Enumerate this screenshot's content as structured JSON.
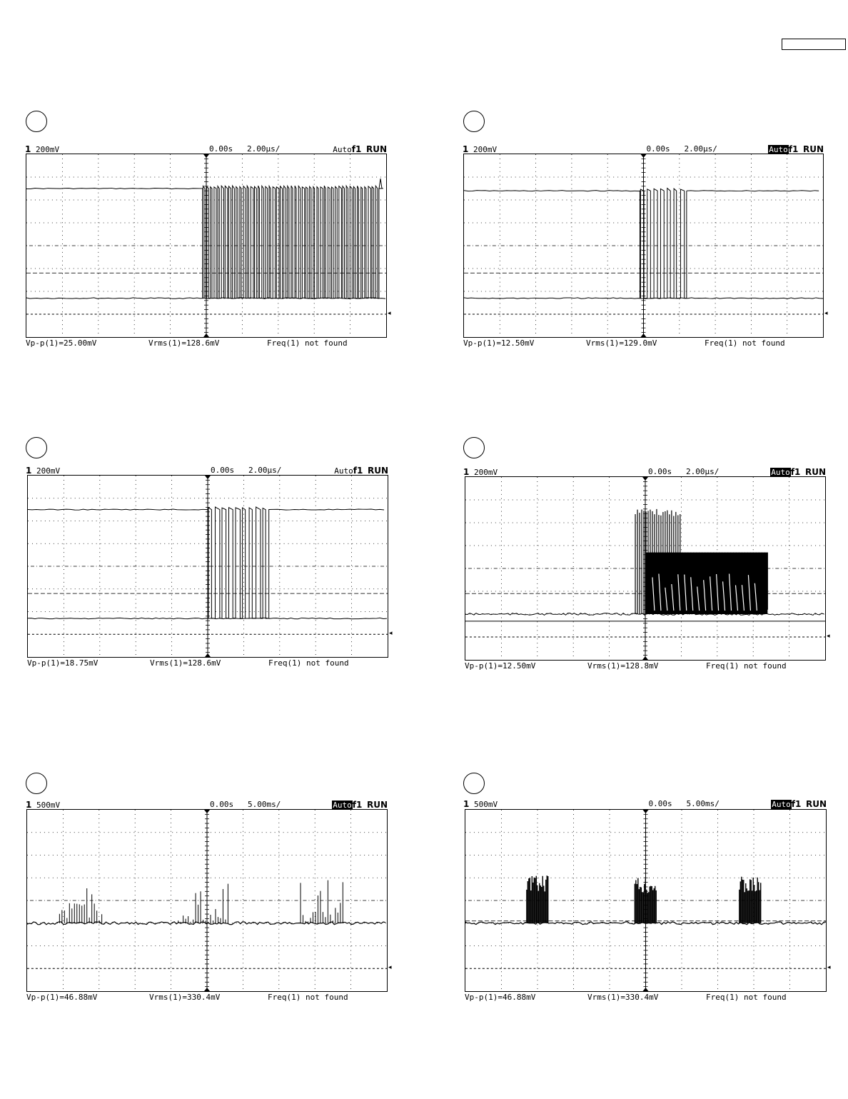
{
  "page": {
    "corner_box_label": ""
  },
  "chart_data": [
    {
      "type": "line",
      "id": "scope-1",
      "circle_label": "",
      "header": {
        "channel": "1",
        "volts_div": "200mV",
        "time_offset": "0.00s",
        "time_div": "2.00µs/",
        "trigger_mode": "Auto",
        "trigger_mode_inverted": false,
        "trigger_src": "f1",
        "run_state": "RUN"
      },
      "footer": {
        "vpp": "Vp-p(1)=25.00mV",
        "vrms": "Vrms(1)=128.6mV",
        "freq": "Freq(1) not found"
      },
      "time_range_div": [
        0,
        10
      ],
      "volt_range_div": [
        0,
        8
      ],
      "signal": {
        "high_level_div": 1.5,
        "low_level_div": 6.3,
        "burst_start_div": 4.9,
        "burst_end_div": 9.8,
        "pulses": 48,
        "spike_end": true
      }
    },
    {
      "type": "line",
      "id": "scope-2",
      "circle_label": "",
      "header": {
        "channel": "1",
        "volts_div": "200mV",
        "time_offset": "0.00s",
        "time_div": "2.00µs/",
        "trigger_mode": "Auto",
        "trigger_mode_inverted": true,
        "trigger_src": "f1",
        "run_state": "RUN"
      },
      "footer": {
        "vpp": "Vp-p(1)=12.50mV",
        "vrms": "Vrms(1)=129.0mV",
        "freq": "Freq(1) not found"
      },
      "time_range_div": [
        0,
        10
      ],
      "volt_range_div": [
        0,
        8
      ],
      "signal": {
        "high_level_div": 1.6,
        "low_level_div": 6.3,
        "burst_start_div": 4.9,
        "burst_end_div": 6.2,
        "pulses": 7,
        "spike_end": false
      }
    },
    {
      "type": "line",
      "id": "scope-3",
      "circle_label": "",
      "header": {
        "channel": "1",
        "volts_div": "200mV",
        "time_offset": "0.00s",
        "time_div": "2.00µs/",
        "trigger_mode": "Auto",
        "trigger_mode_inverted": false,
        "trigger_src": "f1",
        "run_state": "RUN"
      },
      "footer": {
        "vpp": "Vp-p(1)=18.75mV",
        "vrms": "Vrms(1)=128.6mV",
        "freq": "Freq(1) not found"
      },
      "time_range_div": [
        0,
        10
      ],
      "volt_range_div": [
        0,
        8
      ],
      "signal": {
        "high_level_div": 1.5,
        "low_level_div": 6.3,
        "burst_start_div": 5.0,
        "burst_end_div": 6.7,
        "pulses": 9,
        "spike_end": false
      }
    },
    {
      "type": "line",
      "id": "scope-4",
      "circle_label": "",
      "header": {
        "channel": "1",
        "volts_div": "200mV",
        "time_offset": "0.00s",
        "time_div": "2.00µs/",
        "trigger_mode": "Auto",
        "trigger_mode_inverted": true,
        "trigger_src": "f1",
        "run_state": "RUN"
      },
      "footer": {
        "vpp": "Vp-p(1)=12.50mV",
        "vrms": "Vrms(1)=128.8mV",
        "freq": "Freq(1) not found"
      },
      "time_range_div": [
        0,
        10
      ],
      "volt_range_div": [
        0,
        8
      ],
      "signal": {
        "baseline_div": 6.0,
        "block_top_div": 3.3,
        "block_start_div": 5.0,
        "block_end_div": 8.4,
        "spike_top_div": 1.4
      }
    },
    {
      "type": "line",
      "id": "scope-5",
      "circle_label": "",
      "header": {
        "channel": "1",
        "volts_div": "500mV",
        "time_offset": "0.00s",
        "time_div": "5.00ms/",
        "trigger_mode": "Auto",
        "trigger_mode_inverted": true,
        "trigger_src": "f1",
        "run_state": "RUN"
      },
      "footer": {
        "vpp": "Vp-p(1)=46.88mV",
        "vrms": "Vrms(1)=330.4mV",
        "freq": "Freq(1) not found"
      },
      "time_range_div": [
        0,
        10
      ],
      "volt_range_div": [
        0,
        8
      ],
      "signal": {
        "baseline_div": 5.0,
        "bursts_div": [
          [
            0.9,
            2.1
          ],
          [
            4.2,
            5.6
          ],
          [
            7.6,
            8.8
          ]
        ],
        "peak_div": 3.1,
        "dense": false
      }
    },
    {
      "type": "line",
      "id": "scope-6",
      "circle_label": "",
      "header": {
        "channel": "1",
        "volts_div": "500mV",
        "time_offset": "0.00s",
        "time_div": "5.00ms/",
        "trigger_mode": "Auto",
        "trigger_mode_inverted": true,
        "trigger_src": "f1",
        "run_state": "RUN"
      },
      "footer": {
        "vpp": "Vp-p(1)=46.88mV",
        "vrms": "Vrms(1)=330.4mV",
        "freq": "Freq(1) not found"
      },
      "time_range_div": [
        0,
        10
      ],
      "volt_range_div": [
        0,
        8
      ],
      "signal": {
        "baseline_div": 5.0,
        "bursts_div": [
          [
            1.7,
            2.3
          ],
          [
            4.7,
            5.3
          ],
          [
            7.6,
            8.2
          ]
        ],
        "peak_div": 2.9,
        "dense": true
      }
    }
  ]
}
